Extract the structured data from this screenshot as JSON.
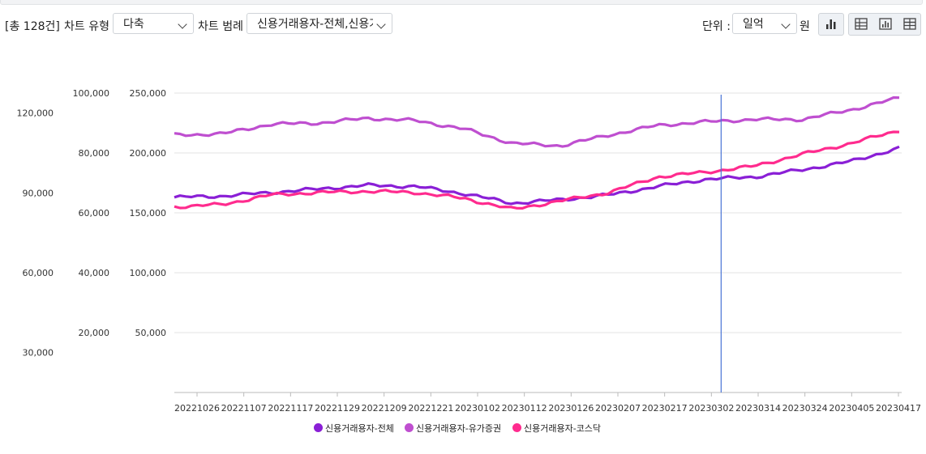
{
  "toolbar": {
    "total_count": "[총 128건]",
    "chart_type_label": "차트 유형",
    "chart_type_value": "다축",
    "legend_label": "차트 범례",
    "legend_value": "신용거래용자-전체,신용거래용자",
    "unit_label": "단위 :",
    "unit_value": "일억",
    "unit_suffix": "원"
  },
  "icons": [
    "bar-chart-icon",
    "table-chart-icon",
    "chart-icon",
    "table-icon"
  ],
  "chart_data": {
    "type": "line",
    "x": [
      "20221026",
      "20221107",
      "20221117",
      "20221129",
      "20221209",
      "20221221",
      "20230102",
      "20230112",
      "20230126",
      "20230207",
      "20230217",
      "20230302",
      "20230314",
      "20230324",
      "20230405",
      "20230417"
    ],
    "axes": [
      {
        "id": "left1",
        "ticks": [
          30000,
          60000,
          90000,
          120000
        ],
        "tick_labels": [
          "30,000",
          "60,000",
          "90,000",
          "120,000"
        ],
        "range": [
          15000,
          127500
        ]
      },
      {
        "id": "left2",
        "ticks": [
          20000,
          40000,
          60000,
          80000,
          100000
        ],
        "tick_labels": [
          "20,000",
          "40,000",
          "60,000",
          "80,000",
          "100,000"
        ],
        "range": [
          0,
          100000
        ]
      },
      {
        "id": "left3",
        "ticks": [
          50000,
          100000,
          150000,
          200000,
          250000
        ],
        "tick_labels": [
          "50,000",
          "100,000",
          "150,000",
          "200,000",
          "250,000"
        ],
        "range": [
          0,
          250000
        ]
      }
    ],
    "series": [
      {
        "name": "신용거래용자-전체",
        "color": "#8a1fd6",
        "values": [
          163000,
          164000,
          167000,
          170000,
          173000,
          172000,
          166000,
          158000,
          161000,
          165000,
          172000,
          178000,
          180000,
          186000,
          193000,
          204000
        ]
      },
      {
        "name": "신용거래용자-유가증권",
        "color": "#bf4fd0",
        "values": [
          215000,
          216000,
          224000,
          225000,
          229000,
          227000,
          220000,
          208000,
          206000,
          215000,
          223000,
          226000,
          228000,
          228000,
          236000,
          246000
        ]
      },
      {
        "name": "신용거래용자-코스닥",
        "color": "#ff2b8e",
        "values": [
          155000,
          157000,
          165000,
          167000,
          168000,
          167000,
          162000,
          153000,
          160000,
          167000,
          180000,
          184000,
          189000,
          199000,
          208000,
          219000
        ]
      }
    ],
    "marker_x": "20230302",
    "legend": [
      "신용거래용자-전체",
      "신용거래용자-유가증권",
      "신용거래용자-코스닥"
    ]
  }
}
